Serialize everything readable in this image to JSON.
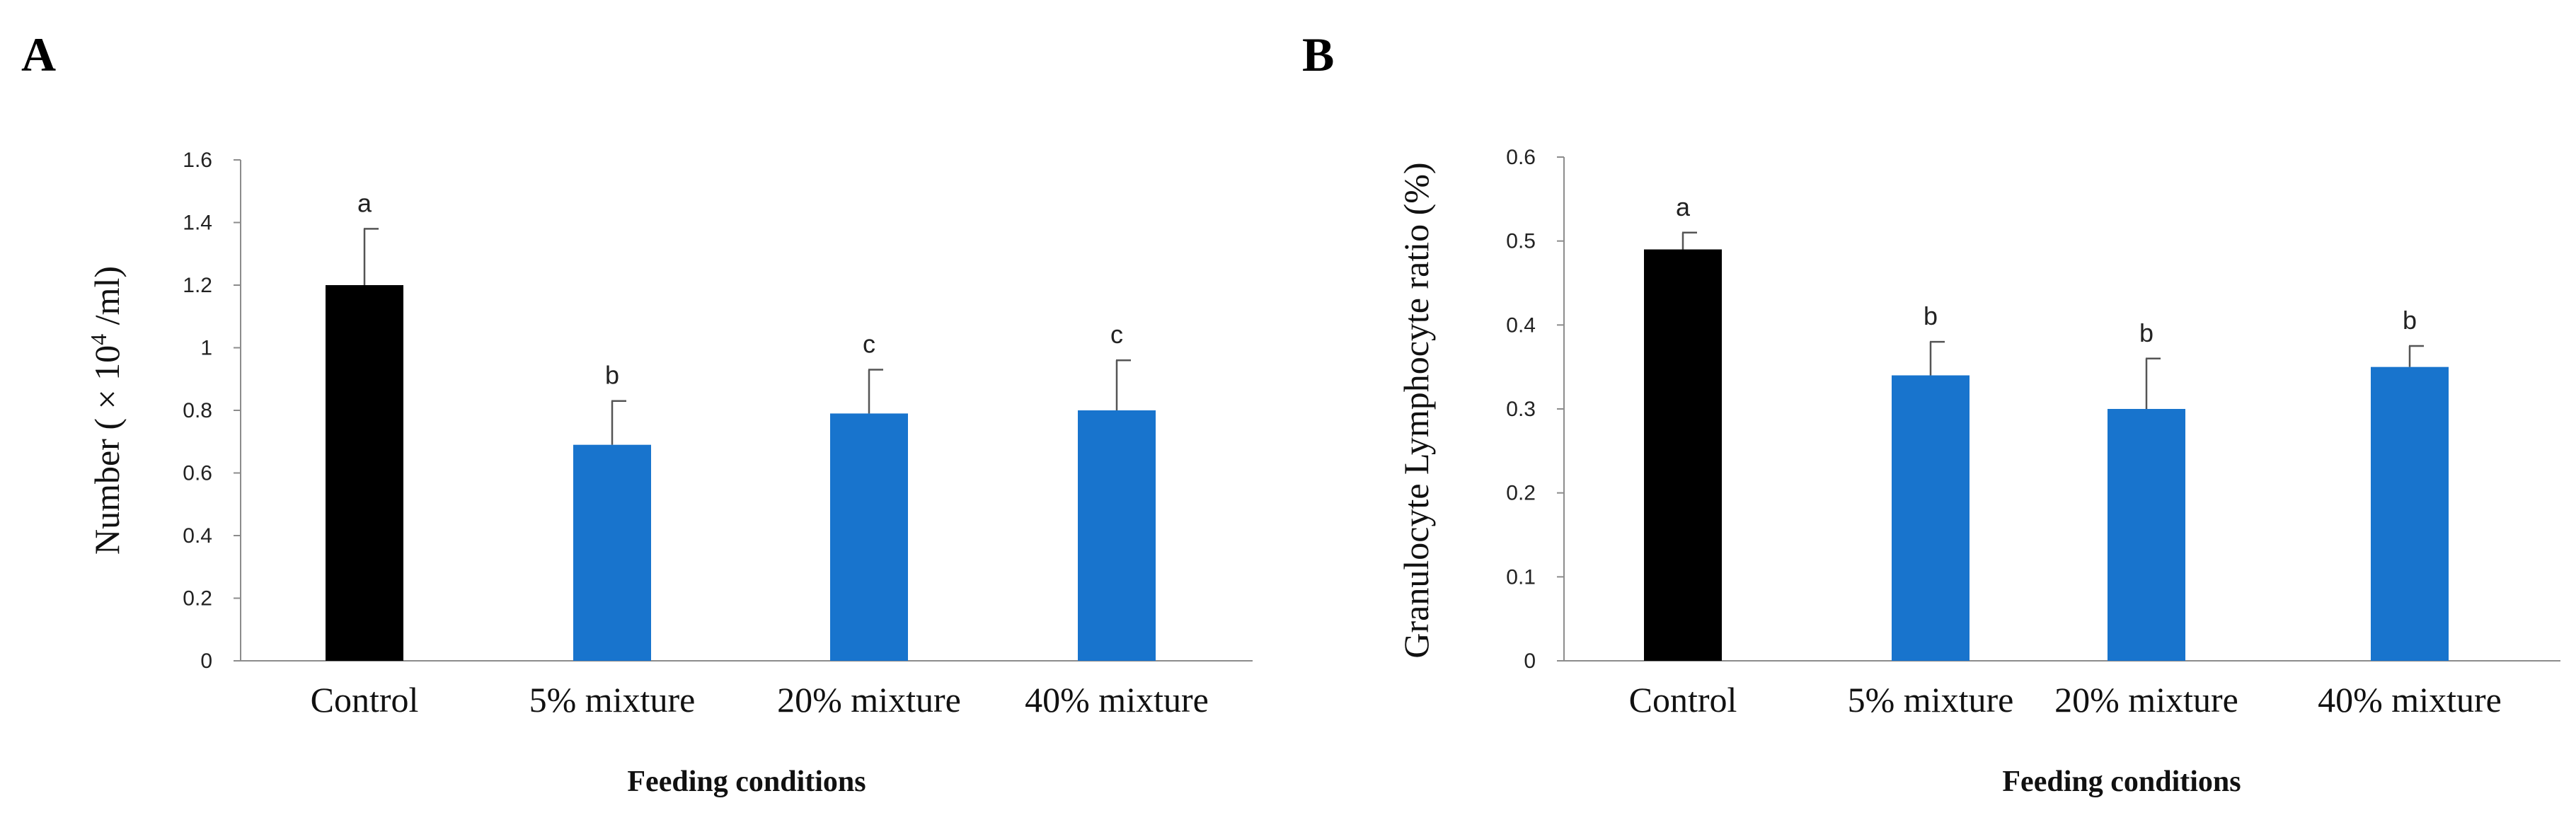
{
  "chart_data": [
    {
      "panel_label": "A",
      "type": "bar",
      "categories": [
        "Control",
        "5% mixture",
        "20% mixture",
        "40% mixture"
      ],
      "values": [
        1.2,
        0.69,
        0.79,
        0.8
      ],
      "error_upper": [
        1.38,
        0.83,
        0.93,
        0.96
      ],
      "significance": [
        "a",
        "b",
        "c",
        "c"
      ],
      "colors": [
        "#000000",
        "#1874CD",
        "#1874CD",
        "#1874CD"
      ],
      "xlabel": "Feeding conditions",
      "ylabel_prefix": "Number ( × 10",
      "ylabel_sup": "4",
      "ylabel_suffix": " /ml)",
      "ylim": [
        0,
        1.6
      ],
      "ytick_labels": [
        "0",
        "0.2",
        "0.4",
        "0.6",
        "0.8",
        "1",
        "1.2",
        "1.4",
        "1.6"
      ],
      "grid": false
    },
    {
      "panel_label": "B",
      "type": "bar",
      "categories": [
        "Control",
        "5% mixture",
        "20% mixture",
        "40% mixture"
      ],
      "values": [
        0.49,
        0.34,
        0.3,
        0.35
      ],
      "error_upper": [
        0.51,
        0.38,
        0.36,
        0.375
      ],
      "significance": [
        "a",
        "b",
        "b",
        "b"
      ],
      "colors": [
        "#000000",
        "#1874CD",
        "#1874CD",
        "#1874CD"
      ],
      "xlabel": "Feeding conditions",
      "ylabel": "Granulocyte Lymphocyte ratio (%)",
      "ylim": [
        0,
        0.6
      ],
      "ytick_labels": [
        "0",
        "0.1",
        "0.2",
        "0.3",
        "0.4",
        "0.5",
        "0.6"
      ],
      "grid": false
    }
  ]
}
